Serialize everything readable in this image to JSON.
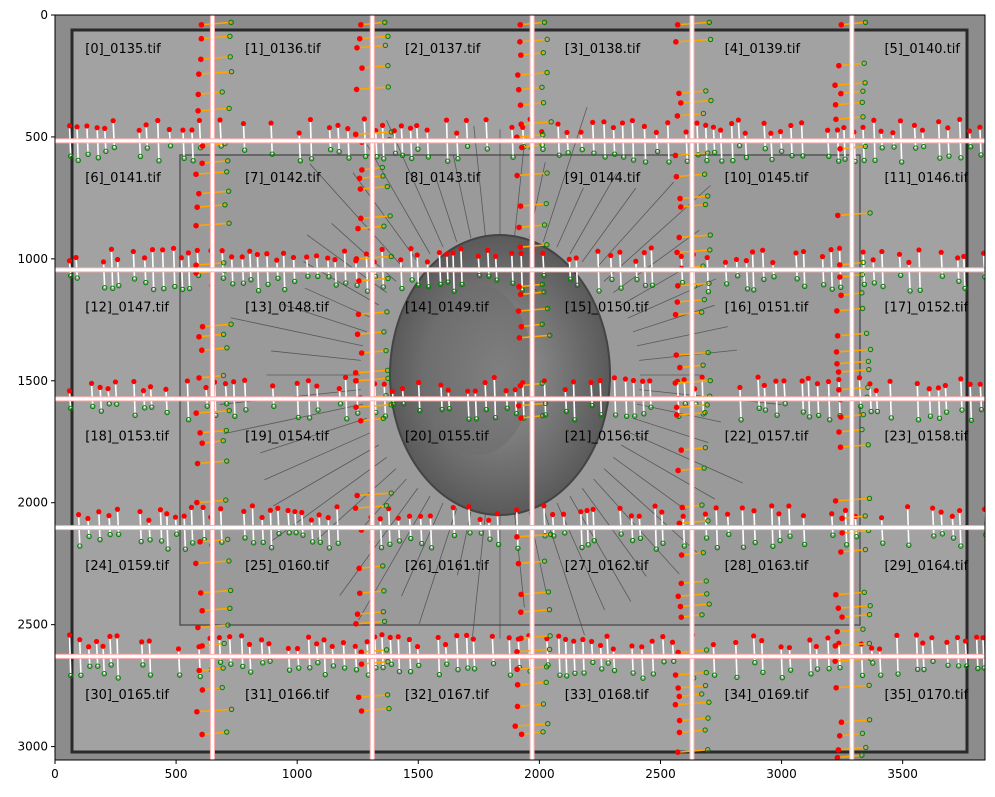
{
  "chart_data": {
    "type": "image-mosaic-overlay",
    "title": "",
    "xlabel": "",
    "ylabel": "",
    "xlim": [
      0,
      3840
    ],
    "ylim": [
      3055,
      0
    ],
    "x_ticks": [
      0,
      500,
      1000,
      1500,
      2000,
      2500,
      3000,
      3500
    ],
    "y_ticks": [
      0,
      500,
      1000,
      1500,
      2000,
      2500,
      3000
    ],
    "grid": false,
    "tile_grid": {
      "cols": 6,
      "rows": 6,
      "tile_step_x": 660,
      "tile_step_y": 530
    },
    "vertical_seams": [
      650,
      1310,
      1970,
      2630,
      3290
    ],
    "horizontal_seams": [
      516,
      1045,
      1574,
      2102,
      2630
    ],
    "tiles": [
      "[0]_0135.tif",
      "[1]_0136.tif",
      "[2]_0137.tif",
      "[3]_0138.tif",
      "[4]_0139.tif",
      "[5]_0140.tif",
      "[6]_0141.tif",
      "[7]_0142.tif",
      "[8]_0143.tif",
      "[9]_0144.tif",
      "[10]_0145.tif",
      "[11]_0146.tif",
      "[12]_0147.tif",
      "[13]_0148.tif",
      "[14]_0149.tif",
      "[15]_0150.tif",
      "[16]_0151.tif",
      "[17]_0152.tif",
      "[18]_0153.tif",
      "[19]_0154.tif",
      "[20]_0155.tif",
      "[21]_0156.tif",
      "[22]_0157.tif",
      "[23]_0158.tif",
      "[24]_0159.tif",
      "[25]_0160.tif",
      "[26]_0161.tif",
      "[27]_0162.tif",
      "[28]_0163.tif",
      "[29]_0164.tif",
      "[30]_0165.tif",
      "[31]_0166.tif",
      "[32]_0167.tif",
      "[33]_0168.tif",
      "[34]_0169.tif",
      "[35]_0170.tif"
    ],
    "colors": {
      "seam": "#ffffff",
      "seam_edge": "#ffb0b0",
      "match_start": "#ff0000",
      "match_end": "#008000",
      "horizontal_match_line": "#ffffff",
      "vertical_match_line": "#ffa500"
    }
  }
}
